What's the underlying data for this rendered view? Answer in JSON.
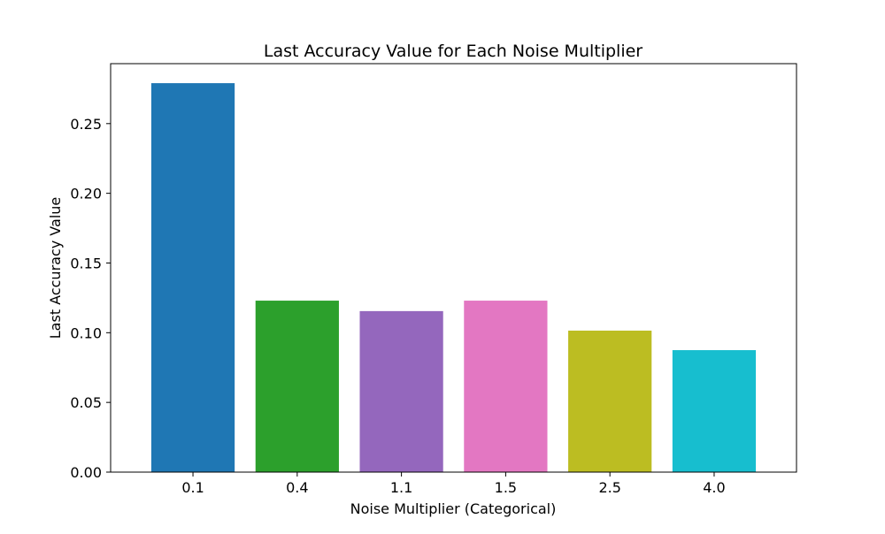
{
  "chart_data": {
    "type": "bar",
    "title": "Last Accuracy Value for Each Noise Multiplier",
    "xlabel": "Noise Multiplier (Categorical)",
    "ylabel": "Last Accuracy Value",
    "categories": [
      "0.1",
      "0.4",
      "1.1",
      "1.5",
      "2.5",
      "4.0"
    ],
    "values": [
      0.279,
      0.123,
      0.1155,
      0.123,
      0.1015,
      0.0875
    ],
    "bar_colors": [
      "#1f77b4",
      "#2ca02c",
      "#9467bd",
      "#e377c2",
      "#bcbd22",
      "#17becf"
    ],
    "ylim": [
      0,
      0.293
    ],
    "yticks": [
      0.0,
      0.05,
      0.1,
      0.15,
      0.2,
      0.25
    ],
    "ytick_labels": [
      "0.00",
      "0.05",
      "0.10",
      "0.15",
      "0.20",
      "0.25"
    ],
    "grid": false,
    "legend": "none"
  }
}
